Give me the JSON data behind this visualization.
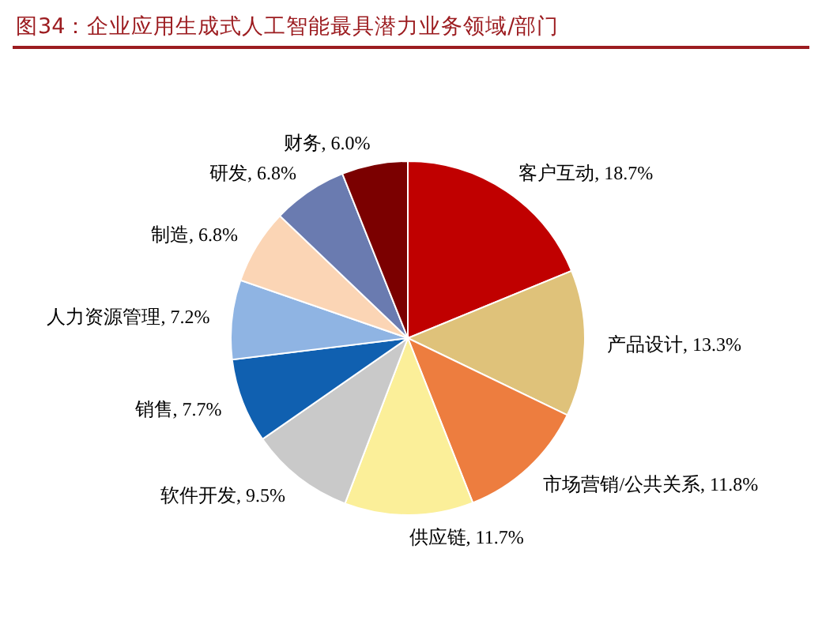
{
  "chart_data": {
    "type": "pie",
    "title": "图34：企业应用生成式人工智能最具潜力业务领域/部门",
    "categories": [
      "客户互动",
      "产品设计",
      "市场营销/公共关系",
      "供应链",
      "软件开发",
      "销售",
      "人力资源管理",
      "制造",
      "研发",
      "财务"
    ],
    "values": [
      18.7,
      13.3,
      11.8,
      11.7,
      9.5,
      7.7,
      7.2,
      6.8,
      6.8,
      6.0
    ],
    "value_labels": [
      ", 18.7%",
      ", 13.3%",
      ", 11.8%",
      ", 11.7%",
      ", 9.5%",
      ", 7.7%",
      ", 7.2%",
      ", 6.8%",
      ", 6.8%",
      ", 6.0%"
    ],
    "colors": [
      "#c00000",
      "#dfc27a",
      "#ed7d3f",
      "#fbef99",
      "#c9c9c9",
      "#1060b0",
      "#8fb4e3",
      "#fbd5b5",
      "#6a7bb0",
      "#7b0000"
    ],
    "legend": false
  }
}
